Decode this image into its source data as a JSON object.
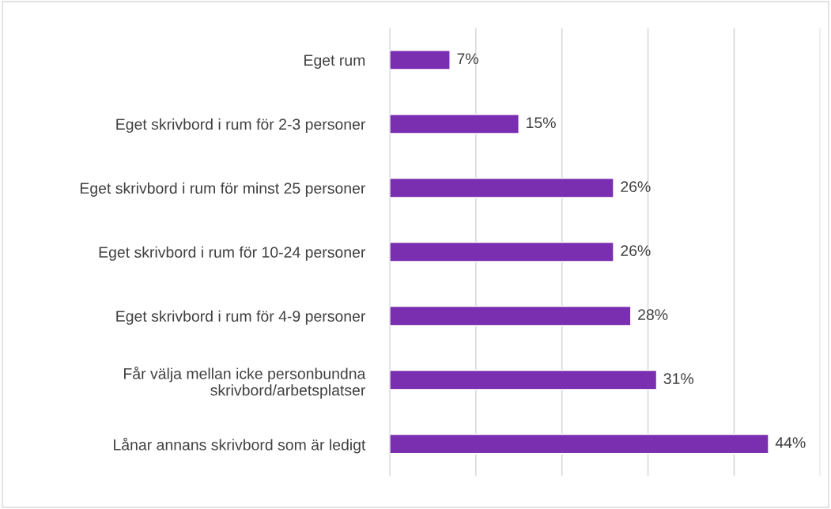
{
  "chart_data": {
    "type": "bar",
    "orientation": "horizontal",
    "categories": [
      "Eget rum",
      "Eget skrivbord i rum för 2-3 personer",
      "Eget skrivbord i rum för minst 25 personer",
      "Eget skrivbord i rum för 10-24 personer",
      "Eget skrivbord i rum för 4-9 personer",
      "Får välja mellan icke personbundna\nskrivbord/arbetsplatser",
      "Lånar annans skrivbord som är ledigt"
    ],
    "values": [
      7,
      15,
      26,
      26,
      28,
      31,
      44
    ],
    "value_labels": [
      "7%",
      "15%",
      "26%",
      "26%",
      "28%",
      "31%",
      "44%"
    ],
    "color": "#7a2fb0",
    "xlim": [
      0,
      50
    ],
    "xticks": [
      {
        "value": 0,
        "label": null
      },
      {
        "value": 10,
        "label": null
      },
      {
        "value": 20,
        "label": null
      },
      {
        "value": 30,
        "label": null
      },
      {
        "value": 40,
        "label": null
      },
      {
        "value": 50,
        "label": null
      }
    ],
    "grid": "x",
    "tick_labels": "y"
  }
}
